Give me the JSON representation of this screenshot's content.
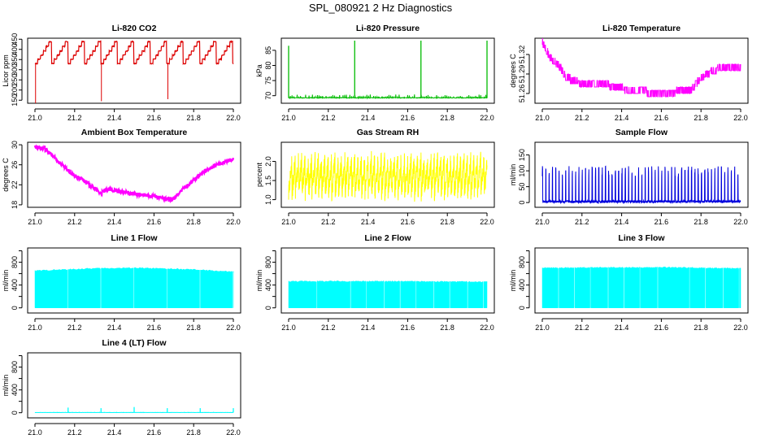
{
  "title": "SPL_080921  2 Hz Diagnostics",
  "chart_data": [
    {
      "id": "co2",
      "type": "line",
      "title": "Li-820 CO2",
      "ylabel": "Licor ppm",
      "color": "#dd0000",
      "xlim": [
        21.0,
        22.0
      ],
      "ylim": [
        135,
        455
      ],
      "yticks": [
        150,
        200,
        250,
        300,
        350,
        400,
        450
      ],
      "xticks": [
        21.0,
        21.2,
        21.4,
        21.6,
        21.8,
        22.0
      ],
      "style": "step",
      "base": 330,
      "steps": [
        330,
        352,
        372,
        392,
        415,
        438
      ],
      "cycle_hours": 0.083,
      "spikes": [
        {
          "x": 21.003,
          "y": 135
        },
        {
          "x": 21.335,
          "y": 145
        },
        {
          "x": 21.67,
          "y": 155
        }
      ]
    },
    {
      "id": "pressure",
      "type": "line",
      "title": "Li-820 Pressure",
      "ylabel": "kPa",
      "color": "#00bb00",
      "xlim": [
        21.0,
        22.0
      ],
      "ylim": [
        67.5,
        89
      ],
      "yticks": [
        70,
        75,
        80,
        85
      ],
      "xticks": [
        21.0,
        21.2,
        21.4,
        21.6,
        21.8,
        22.0
      ],
      "style": "baseline_spikes",
      "base": 69.2,
      "ripple": 1.2,
      "spikes": [
        {
          "x": 21.0,
          "y": 86.5
        },
        {
          "x": 21.333,
          "y": 88.2
        },
        {
          "x": 21.667,
          "y": 88.2
        },
        {
          "x": 22.0,
          "y": 88.2
        }
      ]
    },
    {
      "id": "temperature",
      "type": "line",
      "title": "Li-820 Temperature",
      "ylabel": "degrees C",
      "color": "#ff00ff",
      "xlim": [
        21.0,
        22.0
      ],
      "ylim": [
        51.245,
        51.345
      ],
      "yticks": [
        51.26,
        51.29,
        51.32
      ],
      "xticks": [
        21.0,
        21.2,
        21.4,
        21.6,
        21.8,
        22.0
      ],
      "style": "quantized",
      "points": [
        [
          21.0,
          51.335
        ],
        [
          21.04,
          51.31
        ],
        [
          21.08,
          51.3
        ],
        [
          21.12,
          51.28
        ],
        [
          21.2,
          51.27
        ],
        [
          21.3,
          51.27
        ],
        [
          21.45,
          51.26
        ],
        [
          21.6,
          51.255
        ],
        [
          21.75,
          51.26
        ],
        [
          21.8,
          51.28
        ],
        [
          21.9,
          51.295
        ],
        [
          21.98,
          51.295
        ]
      ]
    },
    {
      "id": "ambient",
      "type": "line",
      "title": "Ambient Box Temperature",
      "ylabel": "degrees C",
      "color": "#ff00ff",
      "xlim": [
        21.0,
        22.0
      ],
      "ylim": [
        17.5,
        30.5
      ],
      "yticks": [
        18,
        22,
        26,
        30
      ],
      "xticks": [
        21.0,
        21.2,
        21.4,
        21.6,
        21.8,
        22.0
      ],
      "style": "noisy",
      "noise": 0.4,
      "points": [
        [
          21.0,
          29.6
        ],
        [
          21.05,
          29.2
        ],
        [
          21.1,
          27.4
        ],
        [
          21.15,
          25.4
        ],
        [
          21.2,
          23.8
        ],
        [
          21.25,
          22.8
        ],
        [
          21.3,
          21.3
        ],
        [
          21.33,
          20.3
        ],
        [
          21.37,
          21.1
        ],
        [
          21.45,
          20.5
        ],
        [
          21.5,
          20.2
        ],
        [
          21.55,
          19.9
        ],
        [
          21.6,
          19.8
        ],
        [
          21.65,
          19.1
        ],
        [
          21.7,
          19.2
        ],
        [
          21.75,
          21.3
        ],
        [
          21.8,
          22.9
        ],
        [
          21.85,
          24.6
        ],
        [
          21.9,
          25.7
        ],
        [
          21.95,
          26.5
        ],
        [
          22.0,
          27.1
        ]
      ]
    },
    {
      "id": "rh",
      "type": "line",
      "title": "Gas Stream RH",
      "ylabel": "percent",
      "color": "#ffff00",
      "xlim": [
        21.0,
        22.0
      ],
      "ylim": [
        0.8,
        2.5
      ],
      "yticks": [
        1.0,
        1.5,
        2.0
      ],
      "xticks": [
        21.0,
        21.2,
        21.4,
        21.6,
        21.8,
        22.0
      ],
      "style": "sawtooth",
      "mean": 1.6,
      "amp": 0.45,
      "cycle_hours": 0.0167
    },
    {
      "id": "sample",
      "type": "line",
      "title": "Sample Flow",
      "ylabel": "ml/min",
      "color": "#0000dd",
      "xlim": [
        21.0,
        22.0
      ],
      "ylim": [
        -15,
        190
      ],
      "yticks": [
        0,
        50,
        100,
        150
      ],
      "xticks": [
        21.0,
        21.2,
        21.4,
        21.6,
        21.8,
        22.0
      ],
      "style": "pulses",
      "base": 3,
      "pulse_high": 115,
      "cycle_hours": 0.0167
    },
    {
      "id": "line1",
      "type": "area",
      "title": "Line 1 Flow",
      "ylabel": "ml/min",
      "color": "#00ffff",
      "xlim": [
        21.0,
        22.0
      ],
      "ylim": [
        -90,
        1050
      ],
      "yticks": [
        0,
        400,
        800
      ],
      "yticks_minor": [
        200,
        600,
        1000
      ],
      "xticks": [
        21.0,
        21.2,
        21.4,
        21.6,
        21.8,
        22.0
      ],
      "style": "fill",
      "level_points": [
        [
          21.0,
          650
        ],
        [
          21.3,
          690
        ],
        [
          21.5,
          700
        ],
        [
          21.8,
          670
        ],
        [
          22.0,
          630
        ]
      ],
      "gaps": [
        21.163,
        21.33,
        21.497,
        21.663,
        21.83,
        21.995
      ]
    },
    {
      "id": "line2",
      "type": "area",
      "title": "Line 2 Flow",
      "ylabel": "ml/min",
      "color": "#00ffff",
      "xlim": [
        21.0,
        22.0
      ],
      "ylim": [
        -90,
        1050
      ],
      "yticks": [
        0,
        400,
        800
      ],
      "yticks_minor": [
        200,
        600,
        1000
      ],
      "xticks": [
        21.0,
        21.2,
        21.4,
        21.6,
        21.8,
        22.0
      ],
      "style": "fill",
      "level_points": [
        [
          21.0,
          465
        ],
        [
          21.5,
          465
        ],
        [
          22.0,
          455
        ]
      ],
      "gaps": [
        21.14,
        21.31,
        21.39,
        21.48,
        21.56,
        21.64,
        21.73,
        21.81,
        21.9,
        21.98
      ]
    },
    {
      "id": "line3",
      "type": "area",
      "title": "Line 3 Flow",
      "ylabel": "ml/min",
      "color": "#00ffff",
      "xlim": [
        21.0,
        22.0
      ],
      "ylim": [
        -90,
        1050
      ],
      "yticks": [
        0,
        400,
        800
      ],
      "yticks_minor": [
        200,
        600,
        1000
      ],
      "xticks": [
        21.0,
        21.2,
        21.4,
        21.6,
        21.8,
        22.0
      ],
      "style": "fill",
      "level_points": [
        [
          21.0,
          700
        ],
        [
          21.6,
          710
        ],
        [
          22.0,
          690
        ]
      ],
      "gaps": [
        21.08,
        21.16,
        21.24,
        21.33,
        21.41,
        21.49,
        21.58,
        21.74,
        21.82,
        21.91,
        21.99
      ]
    },
    {
      "id": "line4",
      "type": "line",
      "title": "Line 4 (LT) Flow",
      "ylabel": "ml/min",
      "color": "#00ffff",
      "xlim": [
        21.0,
        22.0
      ],
      "ylim": [
        -90,
        1050
      ],
      "yticks": [
        0,
        400,
        800
      ],
      "yticks_minor": [
        200,
        600,
        1000
      ],
      "xticks": [
        21.0,
        21.2,
        21.4,
        21.6,
        21.8,
        22.0
      ],
      "style": "baseline_spikes",
      "base": 3,
      "ripple": 6,
      "spikes": [
        {
          "x": 21.167,
          "y": 90
        },
        {
          "x": 21.333,
          "y": 80
        },
        {
          "x": 21.5,
          "y": 100
        },
        {
          "x": 21.667,
          "y": 80
        },
        {
          "x": 21.833,
          "y": 80
        },
        {
          "x": 22.0,
          "y": 80
        }
      ]
    }
  ]
}
